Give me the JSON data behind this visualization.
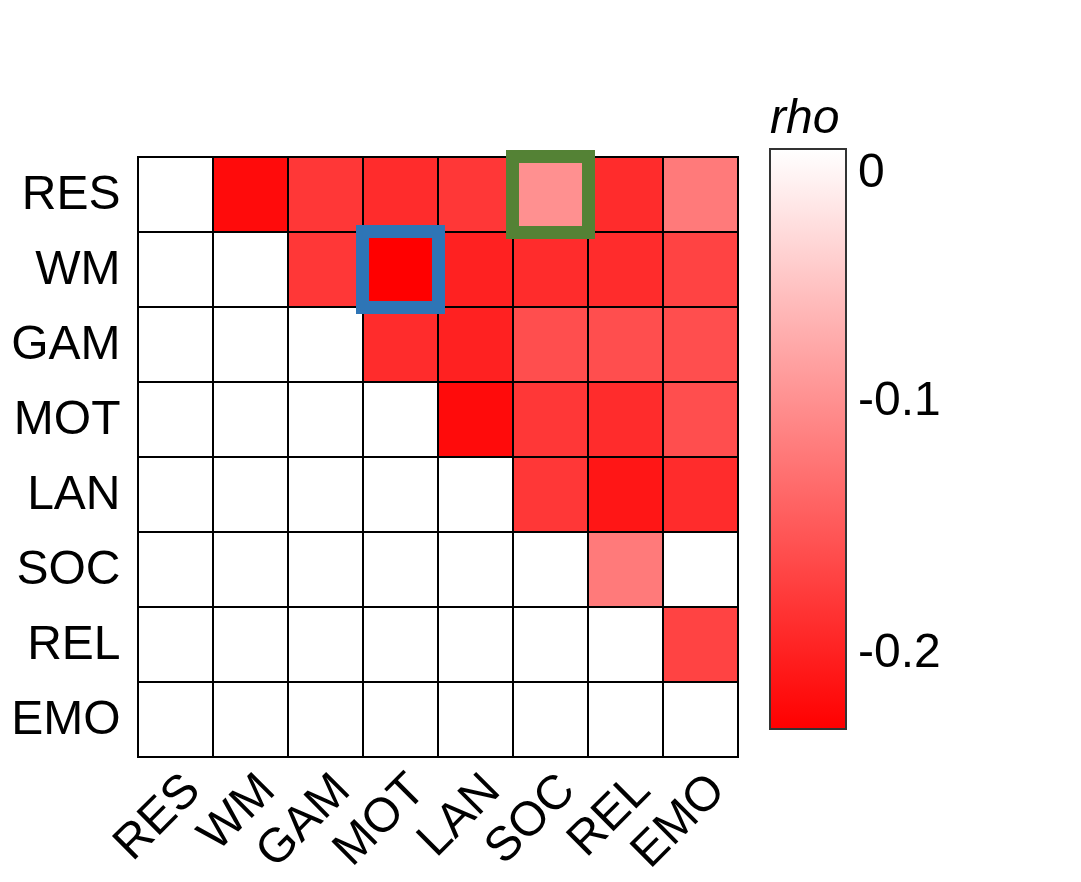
{
  "chart_data": {
    "type": "heatmap",
    "clabel": "rho",
    "categories": [
      "RES",
      "WM",
      "GAM",
      "MOT",
      "LAN",
      "SOC",
      "REL",
      "EMO"
    ],
    "y_categories": [
      "RES",
      "WM",
      "GAM",
      "MOT",
      "LAN",
      "SOC",
      "REL",
      "EMO"
    ],
    "cells": [
      [
        null,
        -0.22,
        -0.18,
        -0.19,
        -0.18,
        -0.1,
        -0.19,
        -0.12
      ],
      [
        null,
        null,
        -0.18,
        -0.23,
        -0.2,
        -0.19,
        -0.19,
        -0.17
      ],
      [
        null,
        null,
        null,
        -0.19,
        -0.2,
        -0.16,
        -0.16,
        -0.16
      ],
      [
        null,
        null,
        null,
        null,
        -0.22,
        -0.18,
        -0.19,
        -0.16
      ],
      [
        null,
        null,
        null,
        null,
        null,
        -0.18,
        -0.21,
        -0.19
      ],
      [
        null,
        null,
        null,
        null,
        null,
        null,
        -0.12,
        null
      ],
      [
        null,
        null,
        null,
        null,
        null,
        null,
        null,
        -0.17
      ],
      [
        null,
        null,
        null,
        null,
        null,
        null,
        null,
        null
      ]
    ],
    "clim": [
      -0.23,
      0
    ],
    "cticks": [
      0,
      -0.1,
      -0.2
    ]
  }
}
